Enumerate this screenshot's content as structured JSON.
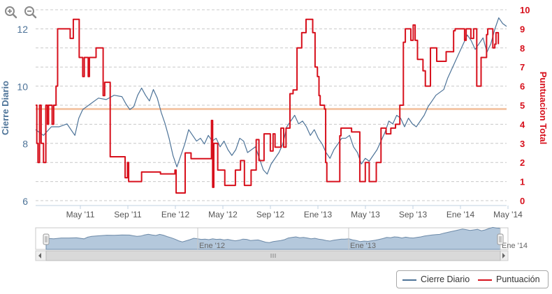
{
  "chart_data": {
    "type": "line",
    "x_labels": [
      "May '11",
      "Sep '11",
      "Ene '12",
      "May '12",
      "Sep '12",
      "Ene '13",
      "May '13",
      "Sep '13",
      "Ene '14",
      "May '14"
    ],
    "left_axis": {
      "label": "Cierre Diario",
      "ticks": [
        "6",
        "8",
        "10",
        "12"
      ],
      "range": [
        6,
        12.5
      ]
    },
    "right_axis": {
      "label": "Puntuacion Total",
      "ticks": [
        "0",
        "1",
        "2",
        "3",
        "4",
        "5",
        "6",
        "7",
        "8",
        "9",
        "10"
      ],
      "range": [
        0,
        10
      ]
    },
    "reference_line": {
      "axis": "right",
      "value": 4.8,
      "color": "#f4c7a8"
    },
    "grid": "horizontal dashed",
    "series": [
      {
        "name": "Cierre Diario",
        "axis": "left",
        "color": "#4d7398",
        "points": [
          [
            0,
            8.5
          ],
          [
            2,
            8.3
          ],
          [
            4,
            8.6
          ],
          [
            6,
            8.6
          ],
          [
            8,
            8.7
          ],
          [
            10,
            8.3
          ],
          [
            11,
            8.9
          ],
          [
            12,
            9.2
          ],
          [
            14,
            9.4
          ],
          [
            16,
            9.6
          ],
          [
            18,
            9.55
          ],
          [
            20,
            9.7
          ],
          [
            22,
            9.65
          ],
          [
            23,
            9.4
          ],
          [
            24,
            9.2
          ],
          [
            25,
            9.3
          ],
          [
            26,
            9.7
          ],
          [
            27,
            9.95
          ],
          [
            28,
            9.7
          ],
          [
            29,
            9.5
          ],
          [
            30,
            9.9
          ],
          [
            31,
            9.6
          ],
          [
            32,
            9.1
          ],
          [
            33,
            8.7
          ],
          [
            34,
            8.2
          ],
          [
            35,
            7.6
          ],
          [
            36,
            7.2
          ],
          [
            37,
            7.6
          ],
          [
            38,
            8.0
          ],
          [
            39,
            8.5
          ],
          [
            40,
            8.3
          ],
          [
            41,
            8.1
          ],
          [
            42,
            8.2
          ],
          [
            43,
            8.0
          ],
          [
            44,
            8.3
          ],
          [
            45,
            8.1
          ],
          [
            46,
            8.2
          ],
          [
            47,
            7.9
          ],
          [
            48,
            8.1
          ],
          [
            49,
            7.8
          ],
          [
            50,
            7.6
          ],
          [
            51,
            7.8
          ],
          [
            52,
            8.2
          ],
          [
            53,
            8.1
          ],
          [
            54,
            7.7
          ],
          [
            55,
            7.8
          ],
          [
            56,
            7.9
          ],
          [
            57,
            7.5
          ],
          [
            58,
            7.1
          ],
          [
            59,
            6.95
          ],
          [
            60,
            7.3
          ],
          [
            61,
            7.5
          ],
          [
            62,
            7.7
          ],
          [
            63,
            8.0
          ],
          [
            64,
            8.6
          ],
          [
            65,
            8.8
          ],
          [
            66,
            9.0
          ],
          [
            67,
            8.7
          ],
          [
            68,
            8.8
          ],
          [
            69,
            8.6
          ],
          [
            70,
            8.3
          ],
          [
            71,
            8.5
          ],
          [
            72,
            8.2
          ],
          [
            73,
            8.0
          ],
          [
            74,
            7.7
          ],
          [
            75,
            7.5
          ],
          [
            76,
            7.8
          ],
          [
            77,
            8.0
          ],
          [
            78,
            8.2
          ],
          [
            79,
            8.2
          ],
          [
            80,
            8.3
          ],
          [
            81,
            7.9
          ],
          [
            82,
            7.7
          ],
          [
            83,
            7.3
          ],
          [
            84,
            7.5
          ],
          [
            85,
            7.4
          ],
          [
            86,
            7.6
          ],
          [
            87,
            7.8
          ],
          [
            88,
            8.1
          ],
          [
            89,
            8.4
          ],
          [
            90,
            8.8
          ],
          [
            91,
            8.7
          ],
          [
            92,
            9.0
          ],
          [
            93,
            8.9
          ],
          [
            94,
            8.6
          ],
          [
            95,
            8.9
          ],
          [
            96,
            8.7
          ],
          [
            97,
            8.6
          ],
          [
            98,
            8.8
          ],
          [
            99,
            9.0
          ],
          [
            100,
            9.3
          ],
          [
            101,
            9.5
          ],
          [
            102,
            9.7
          ],
          [
            103,
            9.8
          ],
          [
            104,
            9.9
          ],
          [
            105,
            10.3
          ],
          [
            106,
            10.6
          ],
          [
            107,
            10.9
          ],
          [
            108,
            11.2
          ],
          [
            109,
            11.5
          ],
          [
            110,
            11.8
          ],
          [
            111,
            11.6
          ],
          [
            112,
            11.3
          ],
          [
            113,
            11.5
          ],
          [
            114,
            11.7
          ],
          [
            115,
            11.2
          ],
          [
            116,
            11.5
          ],
          [
            117,
            12.0
          ],
          [
            118,
            12.4
          ],
          [
            119,
            12.2
          ],
          [
            120,
            12.1
          ]
        ]
      },
      {
        "name": "Puntuación",
        "axis": "right",
        "color": "#d7101c",
        "step": true,
        "points": [
          [
            0,
            5
          ],
          [
            0.3,
            3
          ],
          [
            0.6,
            2
          ],
          [
            1,
            5
          ],
          [
            1.4,
            3
          ],
          [
            2,
            2
          ],
          [
            2.6,
            5
          ],
          [
            3,
            4
          ],
          [
            3.3,
            5
          ],
          [
            4.2,
            4
          ],
          [
            4.6,
            5
          ],
          [
            5.2,
            6
          ],
          [
            5.6,
            9
          ],
          [
            7.6,
            9
          ],
          [
            8.8,
            8.5
          ],
          [
            9.6,
            9.5
          ],
          [
            11.1,
            7.5
          ],
          [
            12.0,
            6.5
          ],
          [
            12.4,
            7.5
          ],
          [
            13.4,
            6.5
          ],
          [
            13.7,
            7.5
          ],
          [
            15.4,
            8
          ],
          [
            17.2,
            5.5
          ],
          [
            17.6,
            6.2
          ],
          [
            18.6,
            6.2
          ],
          [
            19.0,
            2.3
          ],
          [
            19.6,
            2.3
          ],
          [
            22.4,
            2.3
          ],
          [
            22.8,
            1.2
          ],
          [
            23.4,
            2
          ],
          [
            23.7,
            1
          ],
          [
            26.6,
            1
          ],
          [
            27.0,
            1.5
          ],
          [
            31.5,
            1.5
          ],
          [
            31.8,
            1.4
          ],
          [
            35.5,
            1.6
          ],
          [
            35.8,
            0.4
          ],
          [
            37.8,
            0.4
          ],
          [
            38.1,
            2.5
          ],
          [
            39.4,
            2.5
          ],
          [
            39.6,
            2.2
          ],
          [
            44.6,
            2.2
          ],
          [
            44.8,
            4.2
          ],
          [
            45.1,
            0.7
          ],
          [
            45.4,
            3.0
          ],
          [
            46.1,
            3.0
          ],
          [
            46.4,
            1.6
          ],
          [
            47.8,
            1.6
          ],
          [
            48.2,
            0.8
          ],
          [
            50.6,
            0.8
          ],
          [
            50.9,
            1.6
          ],
          [
            51.9,
            1.6
          ],
          [
            52.2,
            2.1
          ],
          [
            52.8,
            2.1
          ],
          [
            53.2,
            0.8
          ],
          [
            54.6,
            0.8
          ],
          [
            54.9,
            1.6
          ],
          [
            55.9,
            1.6
          ],
          [
            56.2,
            3.2
          ],
          [
            56.6,
            3.2
          ],
          [
            56.9,
            2.1
          ],
          [
            57.9,
            2.1
          ],
          [
            58.2,
            3.5
          ],
          [
            59.5,
            3.5
          ],
          [
            59.8,
            2.6
          ],
          [
            60.5,
            3.5
          ],
          [
            61.0,
            2.8
          ],
          [
            62.0,
            2.8
          ],
          [
            62.5,
            3.8
          ],
          [
            63.0,
            3.8
          ],
          [
            63.2,
            2.8
          ],
          [
            63.8,
            3.8
          ],
          [
            64.5,
            3.8
          ],
          [
            64.8,
            5.6
          ],
          [
            65.6,
            5.8
          ],
          [
            66.6,
            8
          ],
          [
            67.8,
            8.8
          ],
          [
            68.9,
            9.5
          ],
          [
            70.6,
            8.8
          ],
          [
            71.2,
            7
          ],
          [
            71.8,
            6.5
          ],
          [
            72.2,
            5.5
          ],
          [
            72.5,
            5.0
          ],
          [
            73.6,
            4.8
          ],
          [
            73.9,
            2.0
          ],
          [
            74.2,
            1.0
          ],
          [
            77.2,
            1.0
          ],
          [
            77.5,
            3.4
          ],
          [
            77.8,
            3.8
          ],
          [
            80.2,
            3.8
          ],
          [
            80.5,
            3.6
          ],
          [
            82.3,
            3.6
          ],
          [
            82.6,
            1.0
          ],
          [
            83.6,
            1.0
          ],
          [
            84.0,
            2.0
          ],
          [
            84.6,
            2.0
          ],
          [
            85.0,
            1.0
          ],
          [
            86.4,
            1.0
          ],
          [
            86.8,
            2.0
          ],
          [
            87.6,
            2.0
          ],
          [
            88.0,
            3.8
          ],
          [
            89.0,
            3.8
          ],
          [
            89.3,
            3.5
          ],
          [
            90.2,
            3.5
          ],
          [
            90.5,
            3.8
          ],
          [
            91.4,
            3.8
          ],
          [
            91.7,
            4.0
          ],
          [
            92.5,
            4.0
          ],
          [
            92.8,
            5.0
          ],
          [
            93.4,
            5.0
          ],
          [
            93.7,
            8.3
          ],
          [
            94.2,
            9.0
          ],
          [
            95.3,
            9.0
          ],
          [
            95.6,
            8.4
          ],
          [
            96.2,
            9.2
          ],
          [
            96.7,
            8.4
          ],
          [
            97.3,
            7.4
          ],
          [
            98.2,
            7.4
          ],
          [
            98.7,
            6.8
          ],
          [
            99.1,
            6.8
          ],
          [
            99.3,
            6.0
          ],
          [
            100.3,
            6.0
          ],
          [
            100.6,
            8.0
          ],
          [
            101.7,
            8.0
          ],
          [
            102.2,
            7.3
          ],
          [
            104.2,
            7.3
          ],
          [
            104.6,
            7.8
          ],
          [
            106.1,
            7.8
          ],
          [
            106.5,
            8.9
          ],
          [
            106.9,
            9.0
          ],
          [
            107.9,
            9.0
          ],
          [
            108.7,
            9.0
          ],
          [
            109.3,
            8.4
          ],
          [
            109.7,
            9.0
          ],
          [
            110.6,
            9.0
          ],
          [
            110.9,
            8.5
          ],
          [
            111.6,
            9.0
          ],
          [
            112.1,
            9.0
          ],
          [
            112.4,
            6.0
          ],
          [
            113.2,
            6.0
          ],
          [
            113.5,
            7.5
          ],
          [
            114.6,
            7.5
          ],
          [
            114.9,
            8.7
          ],
          [
            115.2,
            9.0
          ],
          [
            116.2,
            9.0
          ],
          [
            116.5,
            8.0
          ],
          [
            117.0,
            8.2
          ],
          [
            117.3,
            8.8
          ],
          [
            117.6,
            8.8
          ],
          [
            117.9,
            8.2
          ]
        ]
      }
    ],
    "navigator": {
      "labels": [
        "Ene '12",
        "Ene '13",
        "Ene '14"
      ]
    },
    "legend": [
      "Cierre Diario",
      "Puntuación"
    ]
  },
  "toolbar": {
    "zoom_in_icon": "zoom-in-icon",
    "zoom_out_icon": "zoom-out-icon"
  }
}
